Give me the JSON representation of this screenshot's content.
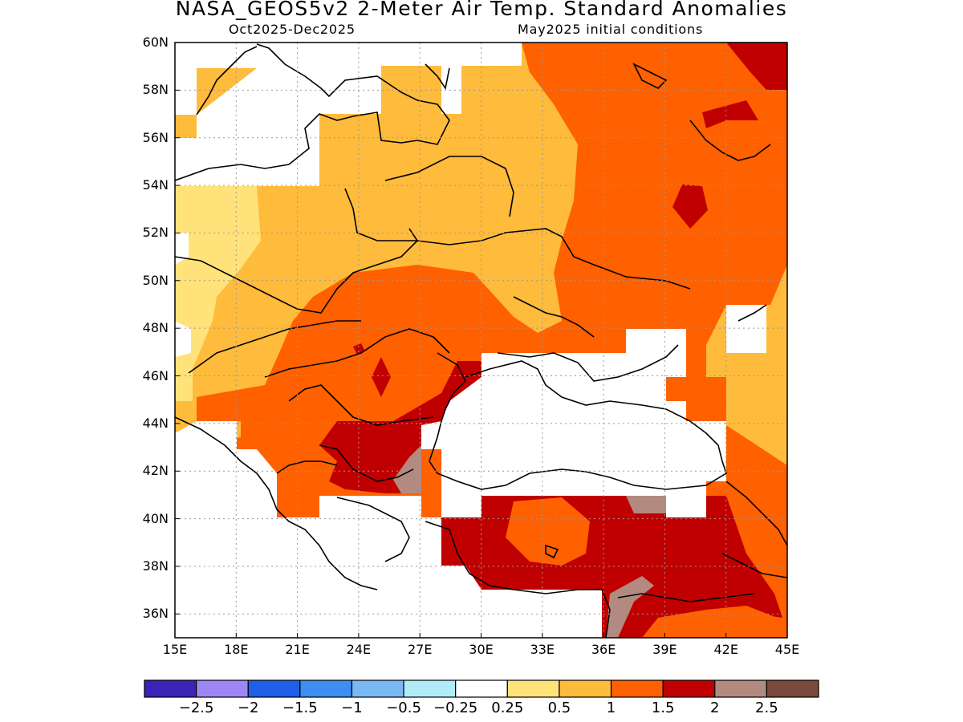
{
  "title": "NASA_GEOS5v2 2-Meter Air Temp. Standard Anomalies",
  "subtitle_left": "Oct2025-Dec2025",
  "subtitle_right": "May2025 initial conditions",
  "lat_labels": [
    "60N",
    "58N",
    "56N",
    "54N",
    "52N",
    "50N",
    "48N",
    "46N",
    "44N",
    "42N",
    "40N",
    "38N",
    "36N"
  ],
  "lon_labels": [
    "15E",
    "18E",
    "21E",
    "24E",
    "27E",
    "30E",
    "33E",
    "36E",
    "39E",
    "42E",
    "45E"
  ],
  "colorbar": {
    "colors": [
      "#3b23b8",
      "#9e87f5",
      "#2060e8",
      "#3d8ef0",
      "#78b8f5",
      "#b0ecf8",
      "#ffffff",
      "#ffe27a",
      "#ffbb3b",
      "#ff6000",
      "#c00000",
      "#b38a80",
      "#7a4a3c"
    ],
    "labels": [
      "−2.5",
      "−2",
      "−1.5",
      "−1",
      "−0.5",
      "−0.25",
      "0.25",
      "0.5",
      "1",
      "1.5",
      "2",
      "2.5"
    ]
  },
  "fill_colors": {
    "light_yellow": "#ffe27a",
    "yellow_orange": "#ffbb3b",
    "orange": "#ff6000",
    "dark_red": "#c00000",
    "taupe": "#b38a80",
    "white": "#ffffff"
  },
  "map_region": {
    "lon_range": [
      15,
      45
    ],
    "lat_range": [
      35,
      60
    ],
    "grid": "dotted"
  }
}
